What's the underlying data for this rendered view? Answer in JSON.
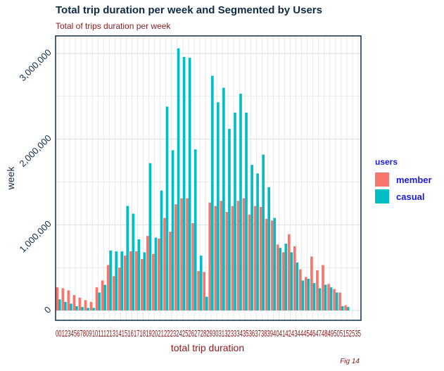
{
  "title": "Total trip duration per week and Segmented by Users",
  "subtitle": "Total of trips duration per week",
  "caption": "Fig 14",
  "legend": {
    "title": "users",
    "items": [
      {
        "label": "member",
        "color": "#f8766d"
      },
      {
        "label": "casual",
        "color": "#00bfc4"
      }
    ]
  },
  "chart_data": {
    "type": "bar",
    "xlabel": "total trip duration",
    "ylabel": "week",
    "ylim": [
      0,
      3200000
    ],
    "yticks": [
      0,
      1000000,
      2000000,
      3000000
    ],
    "ytick_labels": [
      "0",
      "1,000,000",
      "2,000,000",
      "3,000,000"
    ],
    "grid": true,
    "legend_position": "right",
    "categories": [
      "00",
      "01",
      "02",
      "03",
      "04",
      "05",
      "06",
      "07",
      "08",
      "09",
      "10",
      "11",
      "12",
      "13",
      "14",
      "15",
      "16",
      "17",
      "18",
      "19",
      "20",
      "21",
      "22",
      "23",
      "24",
      "25",
      "26",
      "27",
      "28",
      "29",
      "30",
      "31",
      "32",
      "33",
      "34",
      "35",
      "36",
      "37",
      "38",
      "39",
      "40",
      "41",
      "42",
      "43",
      "44",
      "45",
      "46",
      "47",
      "48",
      "49",
      "50",
      "51",
      "52",
      "53"
    ],
    "visible_tick_text": "00123456780910111213141516171819202122232425262728293031323334353637383940414243444546474849505152535",
    "series": [
      {
        "name": "member",
        "color": "#f8766d",
        "values": [
          270000,
          260000,
          235000,
          180000,
          150000,
          120000,
          100000,
          270000,
          350000,
          530000,
          400000,
          500000,
          640000,
          690000,
          690000,
          600000,
          870000,
          660000,
          840000,
          1080000,
          920000,
          1240000,
          1310000,
          1310000,
          1020000,
          460000,
          450000,
          1260000,
          1220000,
          1280000,
          1150000,
          1220000,
          1280000,
          1310000,
          1120000,
          1220000,
          1210000,
          1070000,
          1050000,
          770000,
          680000,
          890000,
          750000,
          480000,
          390000,
          630000,
          470000,
          530000,
          310000,
          250000,
          210000,
          60000,
          0,
          0
        ]
      },
      {
        "name": "casual",
        "color": "#00bfc4",
        "values": [
          130000,
          100000,
          80000,
          50000,
          40000,
          30000,
          30000,
          210000,
          300000,
          700000,
          690000,
          690000,
          1220000,
          1130000,
          830000,
          680000,
          1720000,
          850000,
          1400000,
          2380000,
          1870000,
          3060000,
          2960000,
          2950000,
          1880000,
          640000,
          160000,
          2740000,
          2430000,
          2600000,
          2120000,
          2310000,
          2530000,
          2310000,
          1700000,
          1600000,
          1820000,
          1440000,
          1080000,
          730000,
          780000,
          680000,
          560000,
          350000,
          370000,
          320000,
          260000,
          300000,
          270000,
          210000,
          50000,
          40000,
          0,
          0
        ]
      }
    ]
  }
}
